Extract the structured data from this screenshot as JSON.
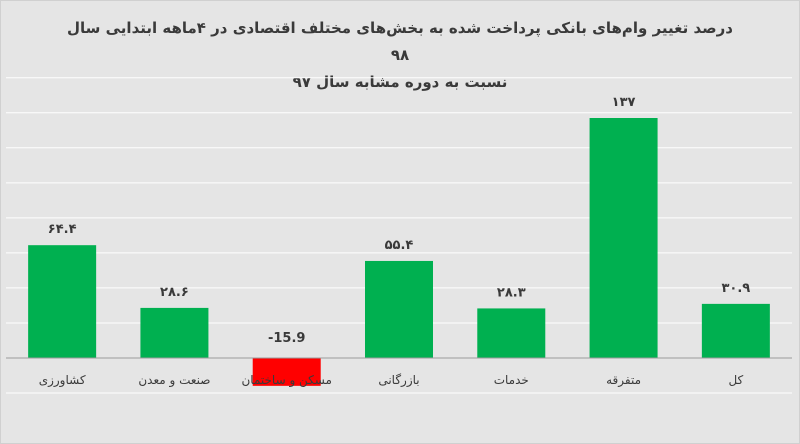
{
  "chart_data": {
    "type": "bar",
    "title_line1": "درصد تغییر وام‌های بانکی پرداخت شده به بخش‌های مختلف اقتصادی در ۴ماهه ابتدایی سال ۹۸",
    "title_line2": "نسبت به دوره مشابه سال ۹۷",
    "categories": [
      "کشاورزی",
      "صنعت و معدن",
      "مسکن و ساختمان",
      "بازرگانی",
      "خدمات",
      "متفرقه",
      "کل"
    ],
    "values": [
      64.4,
      28.6,
      -15.9,
      55.4,
      28.3,
      137,
      30.9
    ],
    "data_labels": [
      "۶۴.۴",
      "۲۸.۶",
      "-15.9",
      "۵۵.۴",
      "۲۸.۳",
      "۱۳۷",
      "۳۰.۹"
    ],
    "ylim": [
      -20,
      160
    ],
    "grid": true,
    "colors": {
      "positive": "#00b050",
      "negative": "#ff0000",
      "grid": "#ffffff",
      "background": "#e5e5e5",
      "text": "#3a3a3a"
    }
  }
}
